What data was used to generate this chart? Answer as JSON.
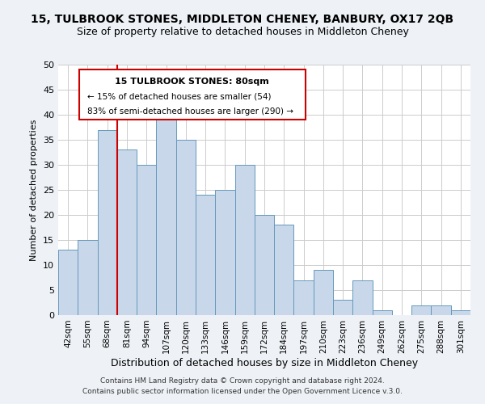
{
  "title": "15, TULBROOK STONES, MIDDLETON CHENEY, BANBURY, OX17 2QB",
  "subtitle": "Size of property relative to detached houses in Middleton Cheney",
  "xlabel": "Distribution of detached houses by size in Middleton Cheney",
  "ylabel": "Number of detached properties",
  "bin_labels": [
    "42sqm",
    "55sqm",
    "68sqm",
    "81sqm",
    "94sqm",
    "107sqm",
    "120sqm",
    "133sqm",
    "146sqm",
    "159sqm",
    "172sqm",
    "184sqm",
    "197sqm",
    "210sqm",
    "223sqm",
    "236sqm",
    "249sqm",
    "262sqm",
    "275sqm",
    "288sqm",
    "301sqm"
  ],
  "bar_heights": [
    13,
    15,
    37,
    33,
    30,
    40,
    35,
    24,
    25,
    30,
    20,
    18,
    7,
    9,
    3,
    7,
    1,
    0,
    2,
    2,
    1
  ],
  "bar_color": "#c8d8ea",
  "bar_edge_color": "#6699bb",
  "vline_x_index": 3,
  "vline_color": "#cc0000",
  "ylim": [
    0,
    50
  ],
  "yticks": [
    0,
    5,
    10,
    15,
    20,
    25,
    30,
    35,
    40,
    45,
    50
  ],
  "annotation_title": "15 TULBROOK STONES: 80sqm",
  "annotation_line1": "← 15% of detached houses are smaller (54)",
  "annotation_line2": "83% of semi-detached houses are larger (290) →",
  "footer1": "Contains HM Land Registry data © Crown copyright and database right 2024.",
  "footer2": "Contains public sector information licensed under the Open Government Licence v.3.0.",
  "bg_color": "#eef2f7",
  "plot_bg_color": "#ffffff",
  "grid_color": "#cccccc",
  "title_fontsize": 10,
  "subtitle_fontsize": 9
}
